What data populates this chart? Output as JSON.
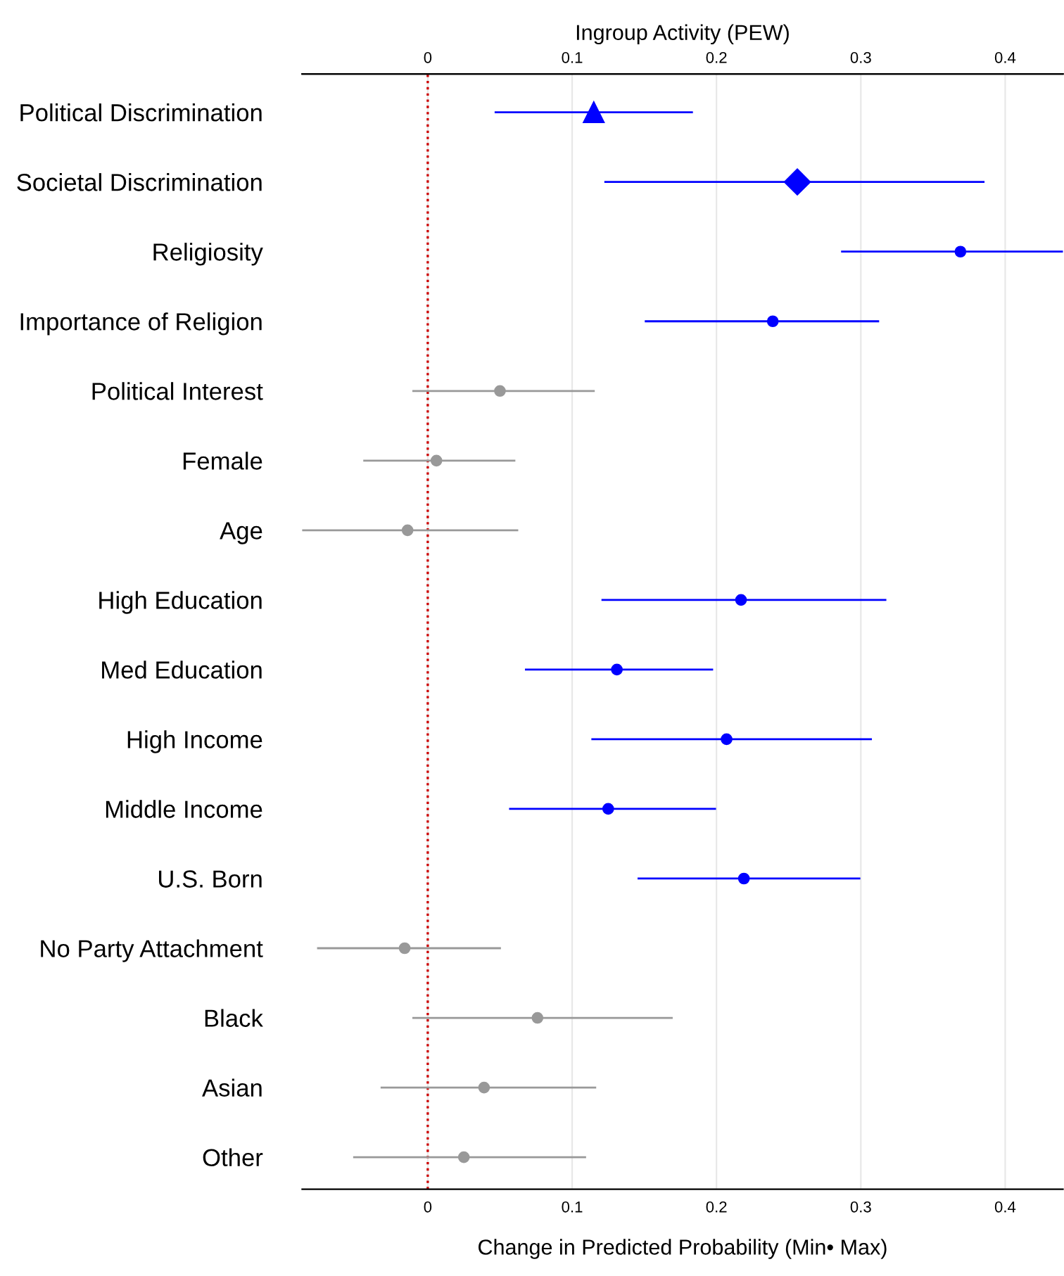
{
  "chart_data": {
    "type": "scatter",
    "orientation": "horizontal",
    "title": "Ingroup Activity (PEW)",
    "xlabel": "Change in Predicted Probability (Min• Max)",
    "categories": [
      "Political Discrimination",
      "Societal Discrimination",
      "Religiosity",
      "Importance of Religion",
      "Political Interest",
      "Female",
      "Age",
      "High Education",
      "Med Education",
      "High Income",
      "Middle Income",
      "U.S. Born",
      "No Party Attachment",
      "Black",
      "Asian",
      "Other"
    ],
    "series": [
      {
        "color": "#0000ff",
        "marker": "triangle",
        "values": [
          0.115,
          null,
          null,
          null,
          null,
          null,
          null,
          null,
          null,
          null,
          null,
          null,
          null,
          null,
          null,
          null
        ],
        "errors": [
          [
            0.047,
            0.183
          ],
          null,
          null,
          null,
          null,
          null,
          null,
          null,
          null,
          null,
          null,
          null,
          null,
          null,
          null,
          null
        ]
      },
      {
        "color": "#0000ff",
        "marker": "diamond",
        "values": [
          null,
          0.256,
          null,
          null,
          null,
          null,
          null,
          null,
          null,
          null,
          null,
          null,
          null,
          null,
          null,
          null
        ],
        "errors": [
          null,
          [
            0.123,
            0.385
          ],
          null,
          null,
          null,
          null,
          null,
          null,
          null,
          null,
          null,
          null,
          null,
          null,
          null,
          null
        ]
      },
      {
        "color": "#0000ff",
        "marker": "circle",
        "values": [
          null,
          null,
          0.369,
          0.239,
          null,
          null,
          null,
          0.217,
          0.131,
          0.207,
          0.125,
          0.219,
          null,
          null,
          null,
          null
        ],
        "errors": [
          null,
          null,
          [
            0.287,
            0.44
          ],
          [
            0.151,
            0.312
          ],
          null,
          null,
          null,
          [
            0.121,
            0.317
          ],
          [
            0.068,
            0.197
          ],
          [
            0.114,
            0.307
          ],
          [
            0.057,
            0.199
          ],
          [
            0.146,
            0.299
          ],
          null,
          null,
          null,
          null
        ]
      },
      {
        "color": "#999999",
        "marker": "circle",
        "values": [
          null,
          null,
          null,
          null,
          0.05,
          0.006,
          -0.014,
          null,
          null,
          null,
          null,
          null,
          -0.016,
          0.076,
          0.039,
          0.025
        ],
        "errors": [
          null,
          null,
          null,
          null,
          [
            -0.01,
            0.115
          ],
          [
            -0.044,
            0.06
          ],
          [
            -0.087,
            0.062
          ],
          null,
          null,
          null,
          null,
          null,
          [
            -0.076,
            0.05
          ],
          [
            -0.01,
            0.169
          ],
          [
            -0.032,
            0.116
          ],
          [
            -0.051,
            0.109
          ]
        ]
      }
    ],
    "xlim": [
      -0.087,
      0.44
    ],
    "xticks": [
      0,
      0.1,
      0.2,
      0.3,
      0.4
    ],
    "x2lim": [
      -0.087,
      0.44
    ],
    "x2ticks": [
      0,
      0.1,
      0.2,
      0.3,
      0.4
    ],
    "grid": "x",
    "ref_lines": [
      {
        "axis": "x",
        "value": 0,
        "color": "#cc0000",
        "line_style": "dotted"
      }
    ]
  }
}
